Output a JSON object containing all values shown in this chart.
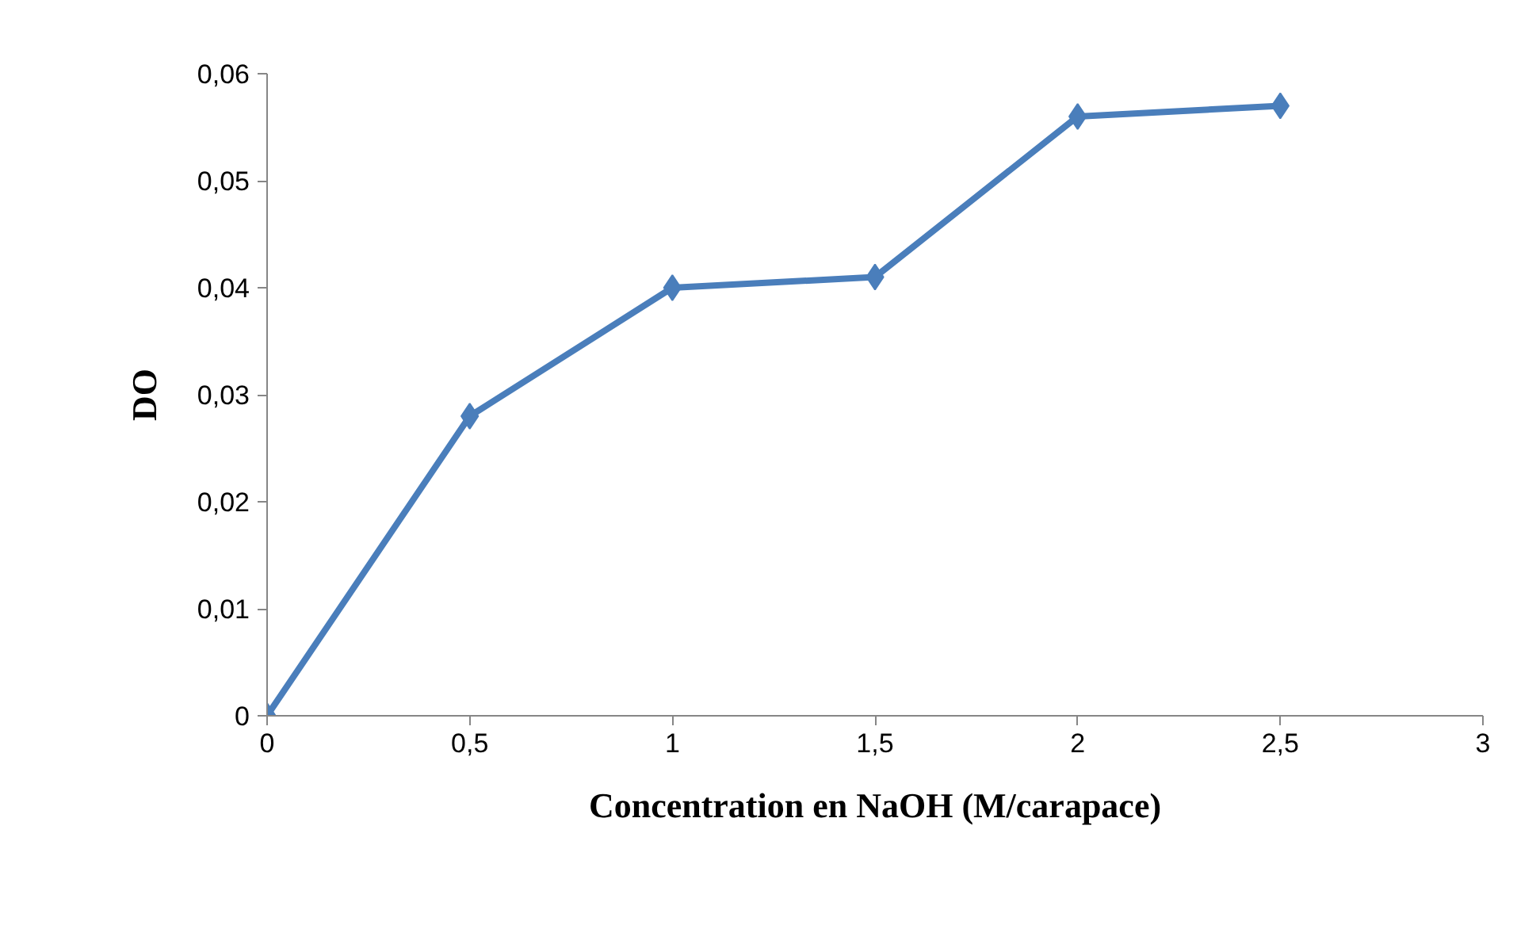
{
  "chart_data": {
    "type": "line",
    "xlabel": "Concentration en NaOH (M/carapace)",
    "ylabel": "DO",
    "x": [
      0,
      0.5,
      1,
      1.5,
      2,
      2.5
    ],
    "series": [
      {
        "color": "#4a7ebb",
        "values": [
          0,
          0.028,
          0.04,
          0.041,
          0.056,
          0.057
        ]
      }
    ],
    "xlim": [
      0,
      3
    ],
    "xticks": [
      0,
      {
        "value": 0.5,
        "label": "0,5"
      },
      1,
      {
        "value": 1.5,
        "label": "1,5"
      },
      2,
      {
        "value": 2.5,
        "label": "2,5"
      },
      3
    ],
    "ylim": [
      0,
      0.06
    ],
    "yticks": [
      0,
      {
        "value": 0.01,
        "label": "0,01"
      },
      {
        "value": 0.02,
        "label": "0,02"
      },
      {
        "value": 0.03,
        "label": "0,03"
      },
      {
        "value": 0.04,
        "label": "0,04"
      },
      {
        "value": 0.05,
        "label": "0,05"
      },
      {
        "value": 0.06,
        "label": "0,06"
      }
    ],
    "grid": false,
    "marker": "diamond",
    "line_style": "solid"
  }
}
